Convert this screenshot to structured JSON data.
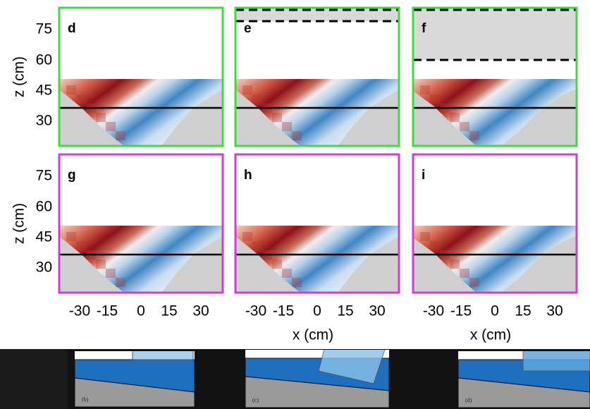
{
  "panels": [
    {
      "label": "d"
    },
    {
      "label": "e"
    },
    {
      "label": "f"
    },
    {
      "label": "g"
    },
    {
      "label": "h"
    },
    {
      "label": "i"
    }
  ],
  "y_axis": {
    "label": "z (cm)",
    "ticks": [
      75,
      60,
      45,
      30
    ]
  },
  "x_axis": {
    "label": "x (cm)",
    "ticks": [
      -30,
      -15,
      0,
      15,
      30
    ]
  },
  "insets": [
    {
      "label": "(b)"
    },
    {
      "label": "(c)"
    },
    {
      "label": "(d)"
    }
  ]
}
